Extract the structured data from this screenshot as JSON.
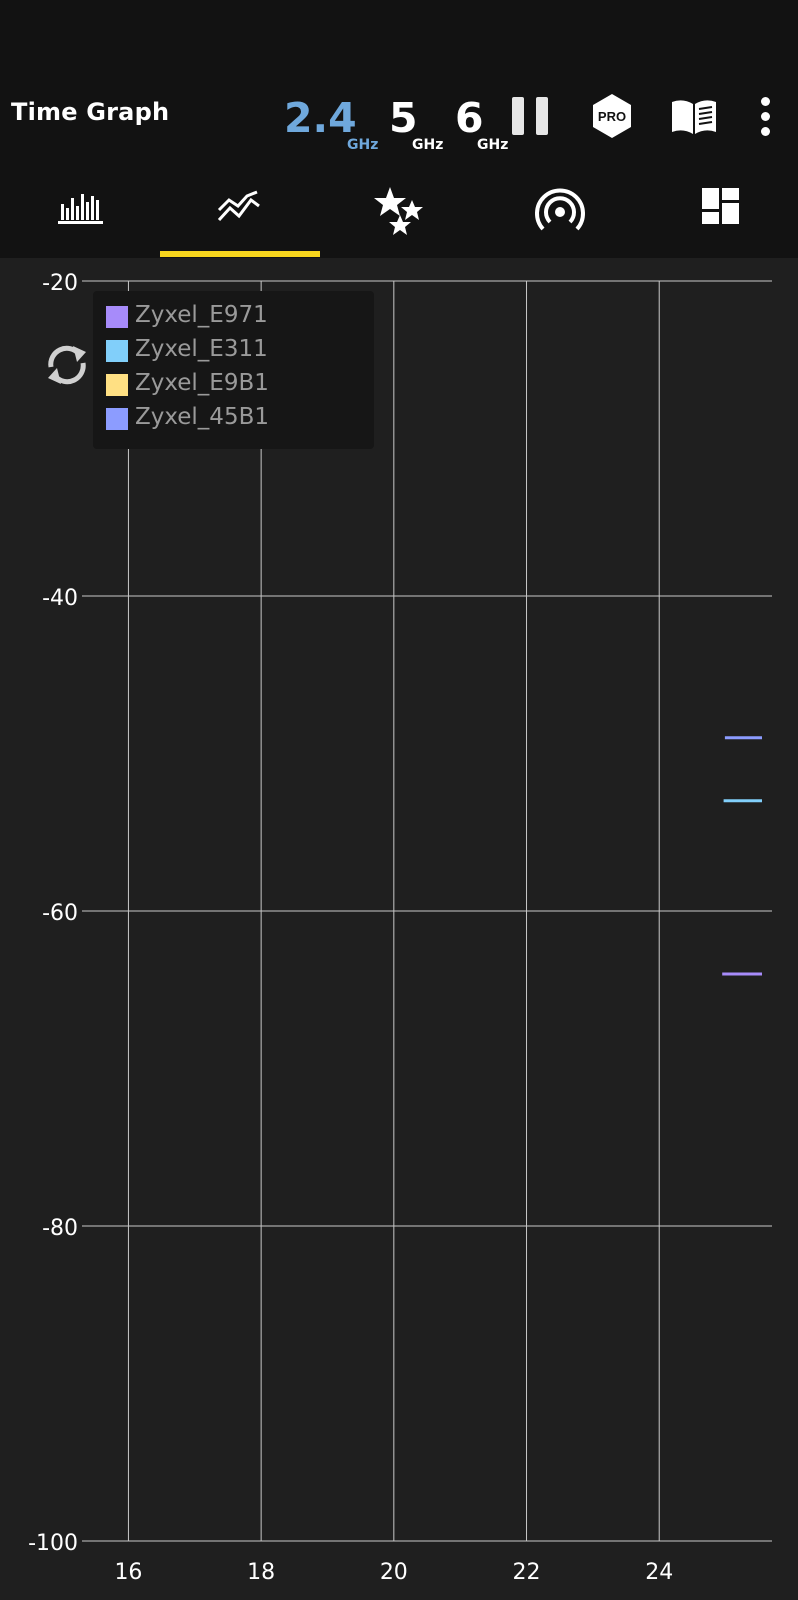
{
  "header": {
    "title": "Time Graph",
    "bands": [
      {
        "value": "2.4",
        "unit": "GHz",
        "active": true
      },
      {
        "value": "5",
        "unit": "GHz",
        "active": false
      },
      {
        "value": "6",
        "unit": "GHz",
        "active": false
      }
    ],
    "pro_label": "PRO"
  },
  "tabs": [
    {
      "name": "channel-graph",
      "icon": "bar-chart-icon",
      "selected": false
    },
    {
      "name": "time-graph",
      "icon": "line-chart-icon",
      "selected": true
    },
    {
      "name": "channel-rating",
      "icon": "stars-icon",
      "selected": false
    },
    {
      "name": "access-points",
      "icon": "wifi-signal-icon",
      "selected": false
    },
    {
      "name": "available-channels",
      "icon": "dashboard-icon",
      "selected": false
    }
  ],
  "colors": {
    "active_band": "#6fa8dc",
    "tab_indicator": "#f7d51d",
    "background": "#1f1f1f",
    "topbar": "#121212"
  },
  "chart_data": {
    "type": "line",
    "x_ticks": [
      16,
      18,
      20,
      22,
      24
    ],
    "y_ticks": [
      -20,
      -40,
      -60,
      -80,
      -100
    ],
    "xlim": [
      15.3,
      25.7
    ],
    "ylim": [
      -100,
      -20
    ],
    "grid": true,
    "legend_placement": "top-left",
    "series": [
      {
        "name": "Zyxel_E971",
        "color": "#a78bfa",
        "points": [
          [
            24.95,
            -64
          ],
          [
            25.55,
            -64
          ]
        ]
      },
      {
        "name": "Zyxel_E311",
        "color": "#81cffa",
        "points": [
          [
            24.97,
            -53
          ],
          [
            25.55,
            -53
          ]
        ]
      },
      {
        "name": "Zyxel_E9B1",
        "color": "#ffe083",
        "points": []
      },
      {
        "name": "Zyxel_45B1",
        "color": "#8c9cff",
        "points": [
          [
            24.99,
            -49
          ],
          [
            25.55,
            -49
          ]
        ]
      }
    ]
  }
}
